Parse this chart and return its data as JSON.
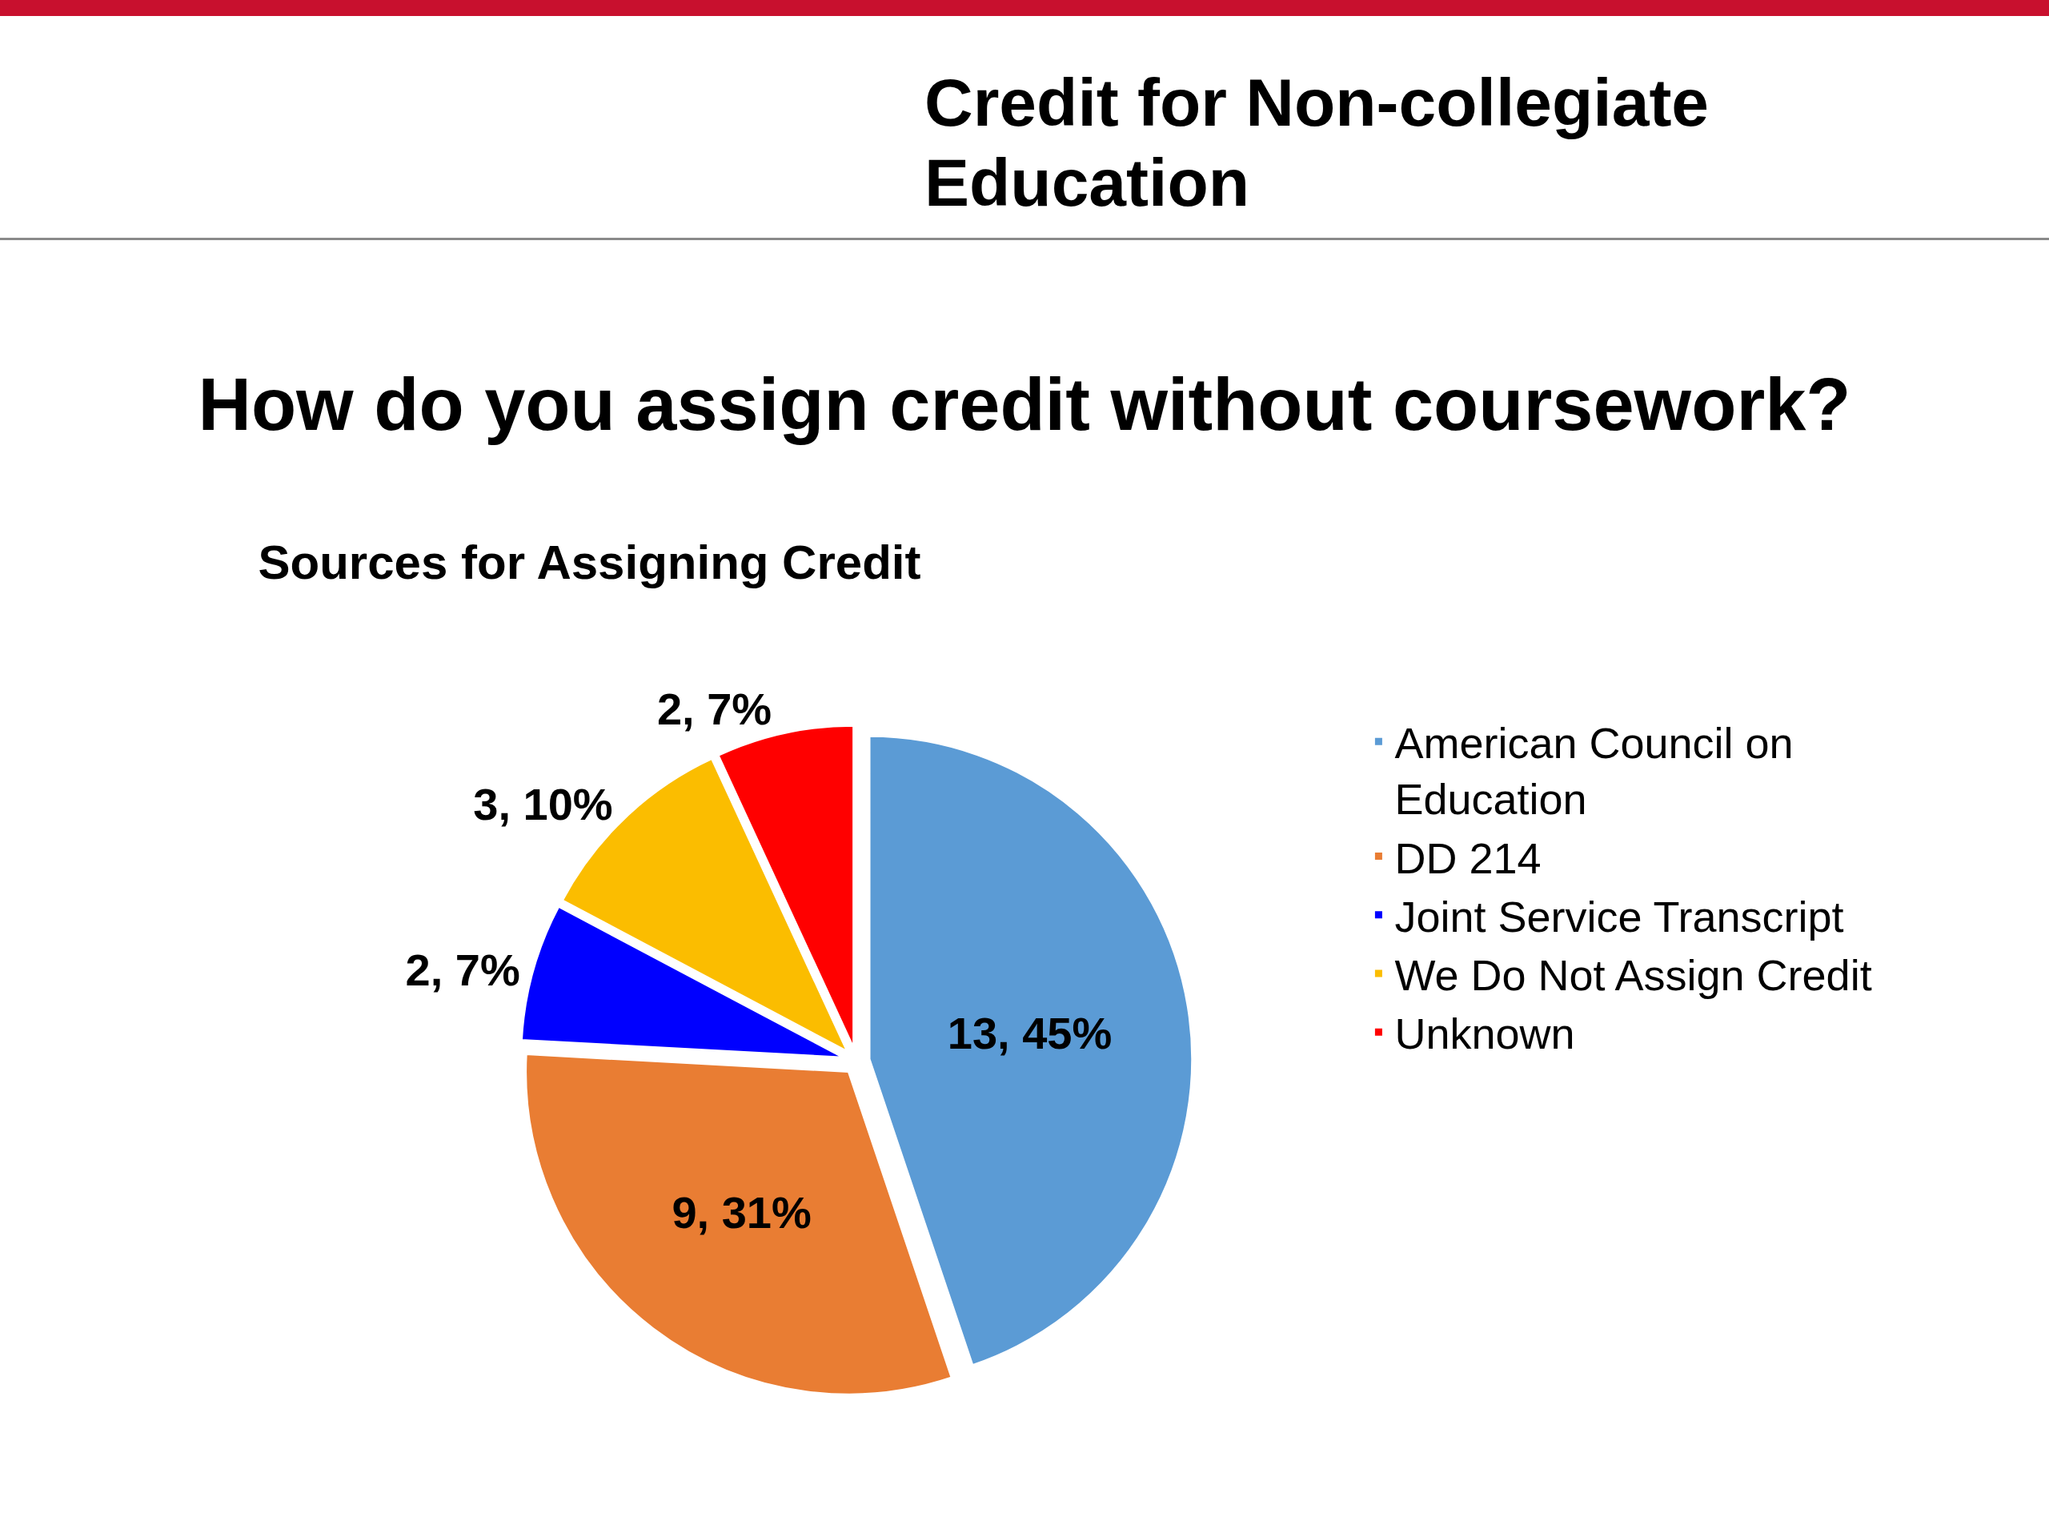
{
  "chart_data": {
    "type": "pie",
    "title": "Sources for Assigning Credit",
    "annotations": [
      "Credit for Non-collegiate Education",
      "How do you assign credit without coursework?"
    ],
    "categories": [
      "American Council on Education",
      "DD 214",
      "Joint Service Transcript",
      "We Do Not Assign Credit",
      "Unknown"
    ],
    "values": [
      13,
      9,
      2,
      3,
      2
    ],
    "colors": [
      "#5b9bd5",
      "#e97d33",
      "#0000ff",
      "#fbbd00",
      "#ff0000"
    ],
    "value_labels": [
      "13, 45%",
      "9, 31%",
      "2, 7%",
      "3, 10%",
      "2, 7%"
    ],
    "legend": "right"
  }
}
